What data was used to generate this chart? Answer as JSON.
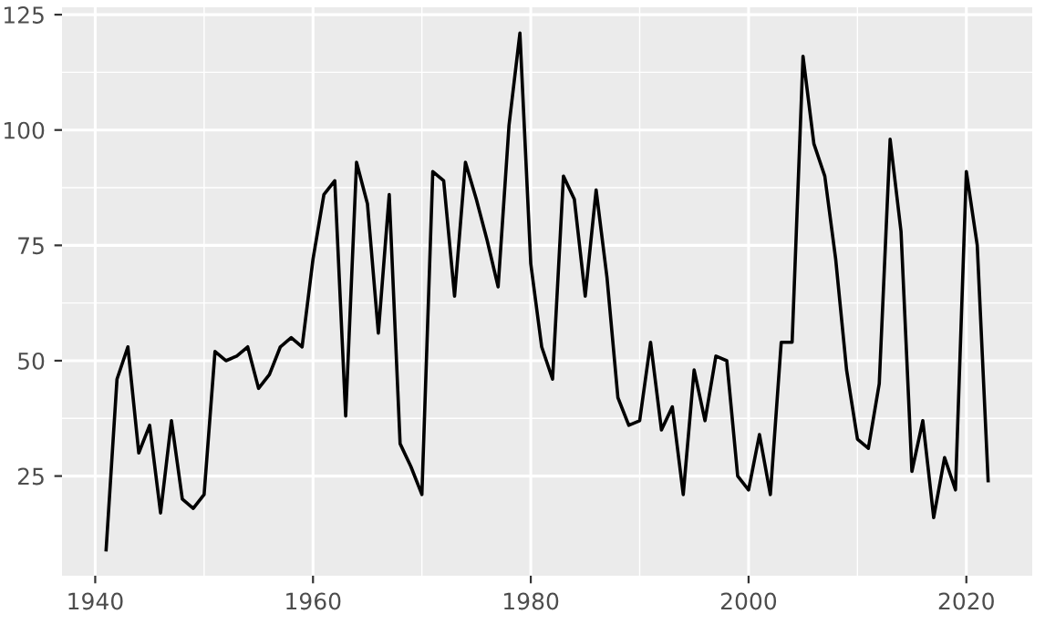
{
  "chart_data": {
    "type": "line",
    "x": [
      1941,
      1942,
      1943,
      1944,
      1945,
      1946,
      1947,
      1948,
      1949,
      1950,
      1951,
      1952,
      1953,
      1954,
      1955,
      1956,
      1957,
      1958,
      1959,
      1960,
      1961,
      1962,
      1963,
      1964,
      1965,
      1966,
      1967,
      1968,
      1969,
      1970,
      1971,
      1972,
      1973,
      1974,
      1975,
      1976,
      1977,
      1978,
      1979,
      1980,
      1981,
      1982,
      1983,
      1984,
      1985,
      1986,
      1987,
      1988,
      1989,
      1990,
      1991,
      1992,
      1993,
      1994,
      1995,
      1996,
      1997,
      1998,
      1999,
      2000,
      2001,
      2002,
      2003,
      2004,
      2005,
      2006,
      2007,
      2008,
      2009,
      2010,
      2011,
      2012,
      2013,
      2014,
      2015,
      2016,
      2017,
      2018,
      2019,
      2020,
      2021,
      2022
    ],
    "series": [
      {
        "color": "#000000",
        "values": [
          9,
          46,
          53,
          30,
          36,
          17,
          37,
          20,
          18,
          21,
          52,
          50,
          51,
          53,
          44,
          47,
          53,
          55,
          53,
          72,
          86,
          89,
          38,
          93,
          84,
          56,
          86,
          32,
          27,
          21,
          91,
          89,
          64,
          93,
          85,
          76,
          66,
          101,
          121,
          71,
          53,
          46,
          90,
          85,
          64,
          87,
          68,
          42,
          36,
          37,
          54,
          35,
          40,
          21,
          48,
          37,
          51,
          50,
          25,
          22,
          34,
          21,
          54,
          54,
          116,
          97,
          90,
          72,
          48,
          33,
          31,
          45,
          98,
          78,
          26,
          37,
          16,
          29,
          22,
          91,
          75,
          24
        ]
      }
    ],
    "xlim": [
      1936.95,
      2026.05
    ],
    "ylim": [
      3.4,
      126.6
    ],
    "xticks": [
      1940,
      1960,
      1980,
      2000,
      2020
    ],
    "yticks": [
      25,
      50,
      75,
      100,
      125
    ],
    "grid": true,
    "marker": "none",
    "line_style": "solid",
    "legend": false
  }
}
